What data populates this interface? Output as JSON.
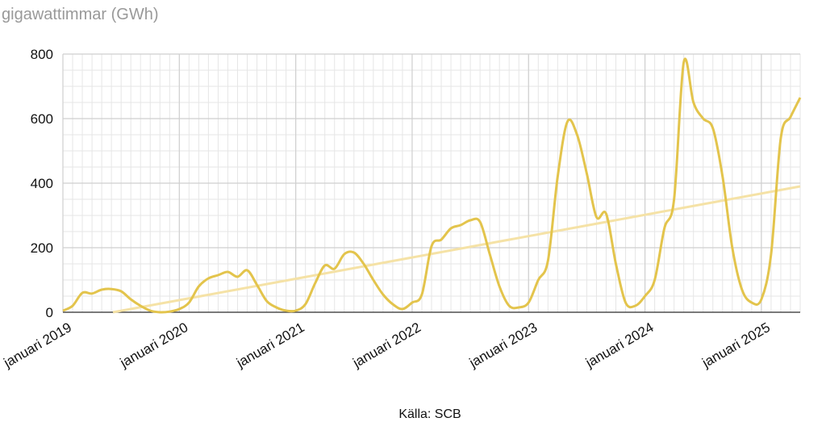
{
  "chart_data": {
    "type": "line",
    "y_axis_title": "gigawattimmar (GWh)",
    "source": "Källa: SCB",
    "x": [
      2019,
      2019.0833,
      2019.1667,
      2019.25,
      2019.3333,
      2019.4167,
      2019.5,
      2019.5833,
      2019.6667,
      2019.75,
      2019.8333,
      2019.9167,
      2020,
      2020.0833,
      2020.1667,
      2020.25,
      2020.3333,
      2020.4167,
      2020.5,
      2020.5833,
      2020.6667,
      2020.75,
      2020.8333,
      2020.9167,
      2021,
      2021.0833,
      2021.1667,
      2021.25,
      2021.3333,
      2021.4167,
      2021.5,
      2021.5833,
      2021.6667,
      2021.75,
      2021.8333,
      2021.9167,
      2022,
      2022.0833,
      2022.1667,
      2022.25,
      2022.3333,
      2022.4167,
      2022.5,
      2022.5833,
      2022.6667,
      2022.75,
      2022.8333,
      2022.9167,
      2023,
      2023.0833,
      2023.1667,
      2023.25,
      2023.3333,
      2023.4167,
      2023.5,
      2023.5833,
      2023.6667,
      2023.75,
      2023.8333,
      2023.9167,
      2024,
      2024.0833,
      2024.1667,
      2024.25,
      2024.3333,
      2024.4167,
      2024.5,
      2024.5833,
      2024.6667,
      2024.75,
      2024.8333,
      2024.9167,
      2025,
      2025.0833,
      2025.1667,
      2025.25,
      2025.3333
    ],
    "series": [
      {
        "color": "#e3c44c",
        "values": [
          5,
          20,
          60,
          58,
          70,
          72,
          65,
          40,
          20,
          5,
          0,
          2,
          10,
          30,
          80,
          105,
          115,
          125,
          110,
          130,
          85,
          35,
          15,
          5,
          5,
          25,
          90,
          145,
          135,
          180,
          185,
          150,
          100,
          55,
          25,
          10,
          30,
          55,
          205,
          225,
          260,
          270,
          285,
          280,
          180,
          80,
          20,
          15,
          30,
          100,
          160,
          420,
          590,
          550,
          430,
          295,
          305,
          150,
          30,
          20,
          50,
          100,
          260,
          350,
          775,
          650,
          600,
          570,
          420,
          200,
          70,
          30,
          40,
          180,
          540,
          605,
          665
        ]
      },
      {
        "color": "#f5e2a6",
        "x": [
          2019.43,
          2025.3333
        ],
        "values": [
          0,
          390
        ]
      }
    ],
    "xlim": [
      2019,
      2025.3333
    ],
    "xticks": [
      {
        "value": 2019,
        "label": "januari 2019"
      },
      {
        "value": 2020,
        "label": "januari 2020"
      },
      {
        "value": 2021,
        "label": "januari 2021"
      },
      {
        "value": 2022,
        "label": "januari 2022"
      },
      {
        "value": 2023,
        "label": "januari 2023"
      },
      {
        "value": 2024,
        "label": "januari 2024"
      },
      {
        "value": 2025,
        "label": "januari 2025"
      }
    ],
    "ylim": [
      0,
      800
    ],
    "yticks": [
      0,
      200,
      400,
      600,
      800
    ],
    "grid": true
  }
}
